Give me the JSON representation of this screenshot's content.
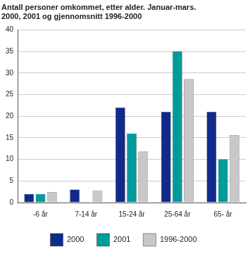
{
  "chart_data": {
    "type": "bar",
    "title": [
      "Antall personer omkommet, etter alder. Januar-mars.",
      "2000, 2001 og gjennomsnitt 1996-2000"
    ],
    "categories": [
      "-6 år",
      "7-14 år",
      "15-24 år",
      "25-64 år",
      "65- år"
    ],
    "series": [
      {
        "name": "2000",
        "color": "#102a8c",
        "values": [
          2,
          3,
          22,
          21,
          21
        ]
      },
      {
        "name": "2001",
        "color": "#009b9b",
        "values": [
          2,
          0,
          16,
          35,
          10
        ]
      },
      {
        "name": "1996-2000",
        "color": "#c8c8c8",
        "values": [
          2.4,
          2.8,
          11.8,
          28.6,
          15.6
        ]
      }
    ],
    "ylim": [
      0,
      40
    ],
    "yticks": [
      0,
      5,
      10,
      15,
      20,
      25,
      30,
      35,
      40
    ],
    "grid": true,
    "legend": "bottom"
  }
}
